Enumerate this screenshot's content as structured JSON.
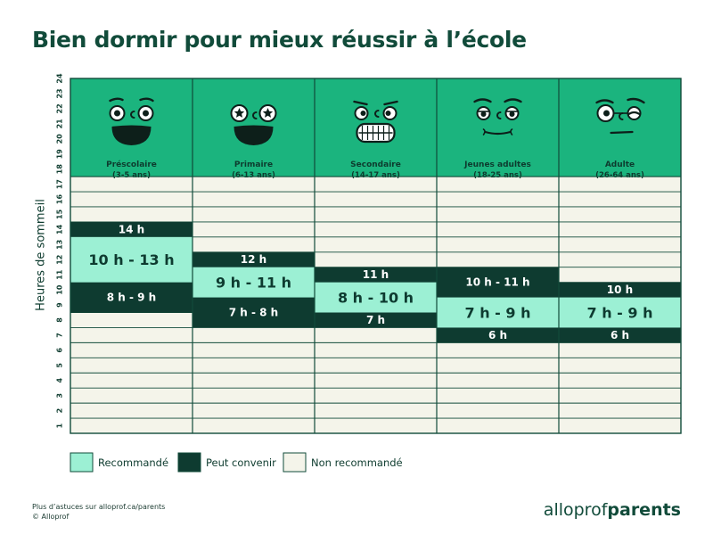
{
  "title": "Bien dormir pour mieux réussir à l’école",
  "footer": {
    "line1": "Plus d’astuces sur alloprof.ca/parents",
    "line2": "© Alloprof"
  },
  "brand": {
    "part1": "alloprof",
    "part2": "parents"
  },
  "colors": {
    "recommended": "#9cf0d4",
    "acceptable": "#0e3b30",
    "not_recommended": "#f4f4ea",
    "header": "#1bb47e",
    "border": "#114b3a",
    "title": "#114b3a"
  },
  "chart_data": {
    "type": "table",
    "title": "Bien dormir pour mieux réussir à l’école",
    "ylabel": "Heures de sommeil",
    "ylim": [
      1,
      24
    ],
    "yticks": [
      "1",
      "2",
      "3",
      "4",
      "5",
      "6",
      "7",
      "8",
      "9",
      "10",
      "11",
      "12",
      "13",
      "14",
      "15",
      "16",
      "17",
      "18",
      "19",
      "20",
      "21",
      "22",
      "23",
      "24"
    ],
    "groups": [
      {
        "name": "Préscolaire",
        "ages": "(3-5 ans)",
        "face": "smile-face-icon",
        "recommended": [
          10,
          13
        ],
        "recommended_label": "10 h - 13 h",
        "acceptable_upper": [
          13,
          14
        ],
        "upper_label": "14 h",
        "acceptable_lower": [
          8,
          10
        ],
        "lower_label": "8 h - 9 h"
      },
      {
        "name": "Primaire",
        "ages": "(6-13 ans)",
        "face": "star-eyes-face-icon",
        "recommended": [
          9,
          11
        ],
        "recommended_label": "9 h - 11 h",
        "acceptable_upper": [
          11,
          12
        ],
        "upper_label": "12 h",
        "acceptable_lower": [
          7,
          9
        ],
        "lower_label": "7 h - 8 h"
      },
      {
        "name": "Secondaire",
        "ages": "(14-17 ans)",
        "face": "braces-face-icon",
        "recommended": [
          8,
          10
        ],
        "recommended_label": "8 h - 10 h",
        "acceptable_upper": [
          10,
          11
        ],
        "upper_label": "11 h",
        "acceptable_lower": [
          7,
          8
        ],
        "lower_label": "7 h"
      },
      {
        "name": "Jeunes adultes",
        "ages": "(18-25 ans)",
        "face": "smirk-face-icon",
        "recommended": [
          7,
          9
        ],
        "recommended_label": "7 h - 9 h",
        "acceptable_upper": [
          9,
          11
        ],
        "upper_label": "10 h - 11 h",
        "acceptable_lower": [
          6,
          7
        ],
        "lower_label": "6 h"
      },
      {
        "name": "Adulte",
        "ages": "(26-64 ans)",
        "face": "wink-face-icon",
        "recommended": [
          7,
          9
        ],
        "recommended_label": "7 h - 9 h",
        "acceptable_upper": [
          9,
          10
        ],
        "upper_label": "10 h",
        "acceptable_lower": [
          6,
          7
        ],
        "lower_label": "6 h"
      }
    ],
    "legend": [
      {
        "key": "recommended",
        "label": "Recommandé"
      },
      {
        "key": "acceptable",
        "label": "Peut convenir"
      },
      {
        "key": "not_recommended",
        "label": "Non recommandé"
      }
    ]
  }
}
